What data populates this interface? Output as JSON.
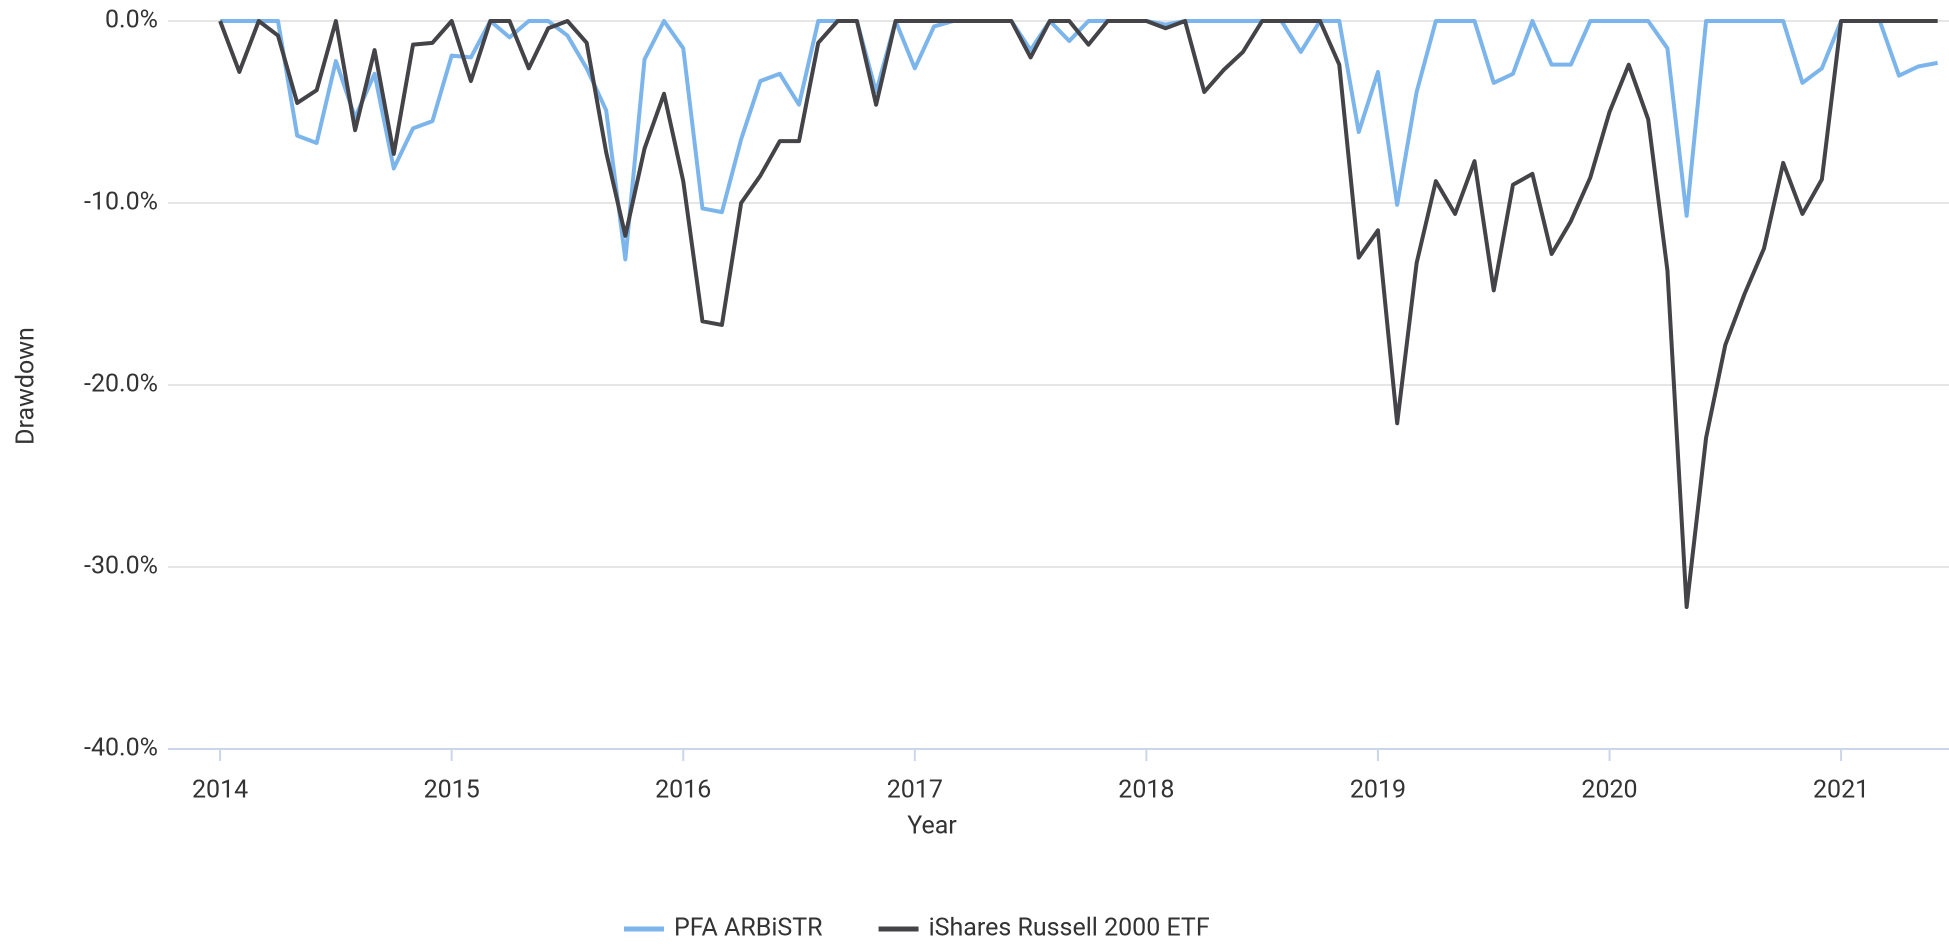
{
  "chart_data": {
    "type": "line",
    "x_label": "Year",
    "y_label": "Drawdown",
    "x": [
      2014.0,
      2014.083,
      2014.167,
      2014.25,
      2014.333,
      2014.417,
      2014.5,
      2014.583,
      2014.667,
      2014.75,
      2014.833,
      2014.917,
      2015.0,
      2015.083,
      2015.167,
      2015.25,
      2015.333,
      2015.417,
      2015.5,
      2015.583,
      2015.667,
      2015.75,
      2015.833,
      2015.917,
      2016.0,
      2016.083,
      2016.167,
      2016.25,
      2016.333,
      2016.417,
      2016.5,
      2016.583,
      2016.667,
      2016.75,
      2016.833,
      2016.917,
      2017.0,
      2017.083,
      2017.167,
      2017.25,
      2017.333,
      2017.417,
      2017.5,
      2017.583,
      2017.667,
      2017.75,
      2017.833,
      2017.917,
      2018.0,
      2018.083,
      2018.167,
      2018.25,
      2018.333,
      2018.417,
      2018.5,
      2018.583,
      2018.667,
      2018.75,
      2018.833,
      2018.917,
      2019.0,
      2019.083,
      2019.167,
      2019.25,
      2019.333,
      2019.417,
      2019.5,
      2019.583,
      2019.667,
      2019.75,
      2019.833,
      2019.917,
      2020.0,
      2020.083,
      2020.167,
      2020.25,
      2020.333,
      2020.417,
      2020.5,
      2020.583,
      2020.667,
      2020.75,
      2020.833,
      2020.917,
      2021.0,
      2021.083,
      2021.167,
      2021.25,
      2021.333,
      2021.417
    ],
    "series": [
      {
        "name": "PFA ARBiSTR",
        "color": "#7cb5ec",
        "values": [
          0,
          0,
          0,
          0,
          -6.3,
          -6.7,
          -2.2,
          -5.3,
          -2.9,
          -8.1,
          -5.9,
          -5.5,
          -1.9,
          -2.0,
          0,
          -0.9,
          0,
          0,
          -0.8,
          -2.6,
          -4.9,
          -13.1,
          -2.1,
          0,
          -1.5,
          -10.3,
          -10.5,
          -6.5,
          -3.3,
          -2.9,
          -4.6,
          0,
          0,
          0,
          -3.9,
          0,
          -2.6,
          -0.3,
          0,
          0,
          0,
          0,
          -1.6,
          0,
          -1.1,
          0,
          0,
          0,
          0,
          -0.2,
          0,
          0,
          0,
          0,
          0,
          0,
          -1.7,
          0,
          0,
          -6.1,
          -2.8,
          -10.1,
          -3.9,
          0,
          0,
          0,
          -3.4,
          -2.9,
          0,
          -2.4,
          -2.4,
          0,
          0,
          0,
          0,
          -1.5,
          -10.7,
          0,
          0,
          0,
          0,
          0,
          -3.4,
          -2.6,
          0,
          0,
          0,
          -3.0,
          -2.5,
          -2.3
        ]
      },
      {
        "name": "iShares Russell 2000 ETF",
        "color": "#434348",
        "values": [
          0,
          -2.8,
          0,
          -0.8,
          -4.5,
          -3.8,
          0,
          -6.0,
          -1.6,
          -7.3,
          -1.3,
          -1.2,
          0,
          -3.3,
          0,
          0,
          -2.6,
          -0.4,
          0,
          -1.2,
          -7.2,
          -11.8,
          -7.0,
          -4.0,
          -8.8,
          -16.5,
          -16.7,
          -10.0,
          -8.5,
          -6.6,
          -6.6,
          -1.2,
          0,
          0,
          -4.6,
          0,
          0,
          0,
          0,
          0,
          0,
          0,
          -2.0,
          0,
          0,
          -1.3,
          0,
          0,
          0,
          -0.4,
          0,
          -3.9,
          -2.7,
          -1.7,
          0,
          0,
          0,
          0,
          -2.4,
          -13.0,
          -11.5,
          -22.1,
          -13.3,
          -8.8,
          -10.6,
          -7.7,
          -14.8,
          -9.0,
          -8.4,
          -12.8,
          -11.0,
          -8.6,
          -5.0,
          -2.4,
          -5.4,
          -13.7,
          -32.2,
          -22.9,
          -17.8,
          -15.0,
          -12.5,
          -7.8,
          -10.6,
          -8.7,
          0,
          0,
          0,
          0,
          0,
          0
        ]
      }
    ],
    "xlim": [
      2013.775,
      2021.466
    ],
    "xticks": [
      2014,
      2015,
      2016,
      2017,
      2018,
      2019,
      2020,
      2021
    ],
    "ylim": [
      -40,
      0
    ],
    "yticks": [
      {
        "value": -40,
        "label": "-40.0%"
      },
      {
        "value": -30,
        "label": "-30.0%"
      },
      {
        "value": -20,
        "label": "-20.0%"
      },
      {
        "value": -10,
        "label": "-10.0%"
      },
      {
        "value": 0,
        "label": "0.0%"
      }
    ],
    "grid": true,
    "legend": "bottom"
  }
}
